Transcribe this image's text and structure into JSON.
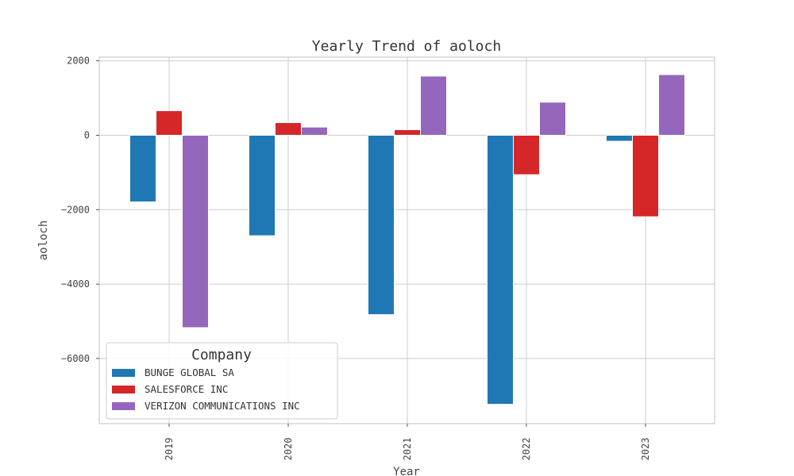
{
  "chart_data": {
    "type": "bar",
    "title": "Yearly Trend of aoloch",
    "xlabel": "Year",
    "ylabel": "aoloch",
    "categories": [
      "2019",
      "2020",
      "2021",
      "2022",
      "2023"
    ],
    "ylim": [
      -7750,
      2100
    ],
    "yticks": [
      2000,
      0,
      -2000,
      -4000,
      -6000
    ],
    "ytick_labels": [
      "2000",
      "0",
      "−2000",
      "−4000",
      "−6000"
    ],
    "grid": true,
    "legend": {
      "title": "Company",
      "placement": "lower-left"
    },
    "series": [
      {
        "name": "BUNGE GLOBAL SA",
        "color": "#1f77b4",
        "values": [
          -1790,
          -2700,
          -4820,
          -7230,
          -160
        ]
      },
      {
        "name": "SALESFORCE INC",
        "color": "#d62728",
        "values": [
          660,
          340,
          150,
          -1060,
          -2190
        ]
      },
      {
        "name": "VERIZON COMMUNICATIONS INC",
        "color": "#9467bd",
        "values": [
          -5170,
          220,
          1590,
          890,
          1630
        ]
      }
    ]
  }
}
